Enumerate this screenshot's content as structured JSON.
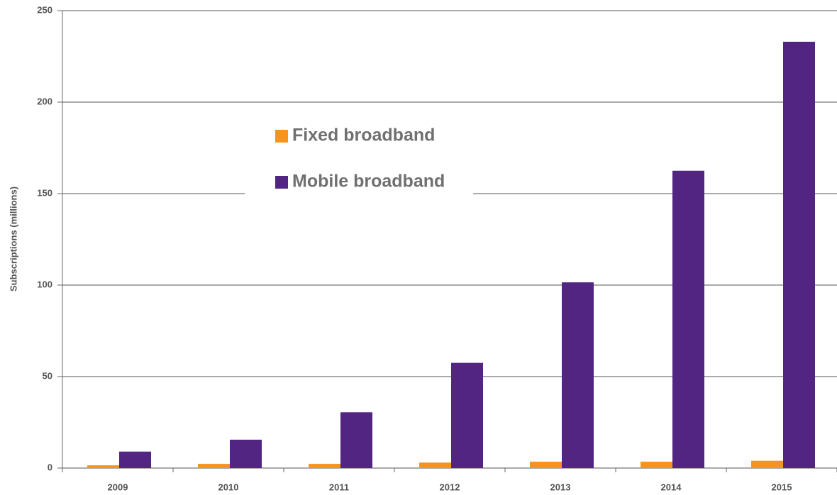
{
  "chart_data": {
    "type": "bar",
    "y_label": "Subscriptions (millions)",
    "categories": [
      "2009",
      "2010",
      "2011",
      "2012",
      "2013",
      "2014",
      "2015"
    ],
    "series": [
      {
        "name": "Fixed broadband",
        "color": "#f7941d",
        "values": [
          1.5,
          2.3,
          2.3,
          3,
          3.5,
          3.5,
          4
        ]
      },
      {
        "name": "Mobile broadband",
        "color": "#522583",
        "values": [
          9,
          15.5,
          30.5,
          57.5,
          101.5,
          162.5,
          233
        ]
      }
    ],
    "ylim": [
      0,
      250
    ],
    "yticks": [
      0,
      50,
      100,
      150,
      200,
      250
    ],
    "grid": true
  }
}
